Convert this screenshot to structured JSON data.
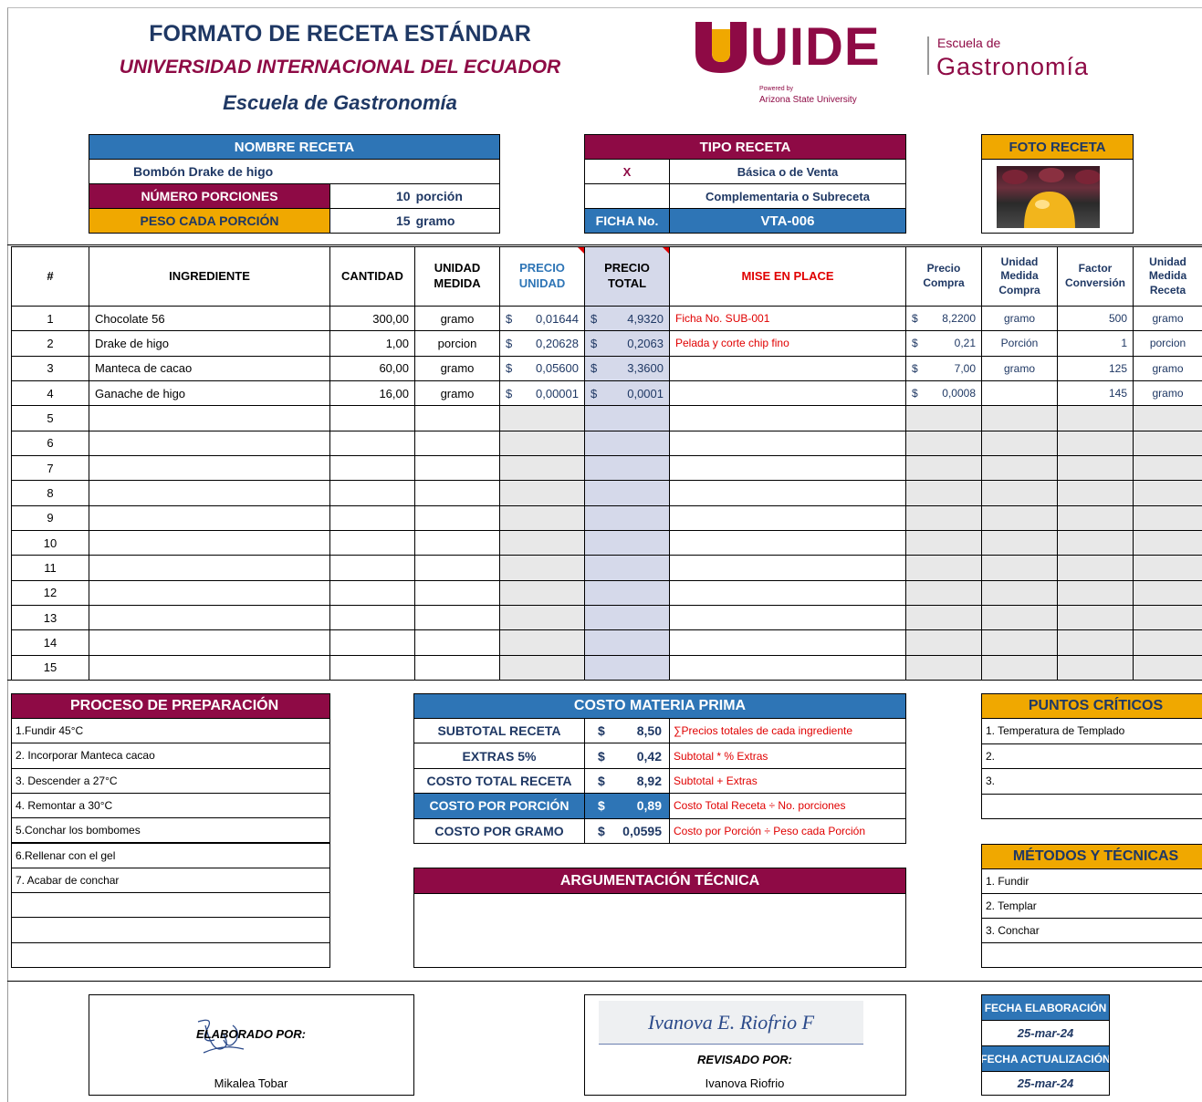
{
  "header": {
    "title": "FORMATO DE RECETA ESTÁNDAR",
    "university": "UNIVERSIDAD INTERNACIONAL DEL ECUADOR",
    "school": "Escuela de Gastronomía"
  },
  "logo": {
    "brand": "UIDE",
    "powered": "Powered by",
    "partner": "Arizona State University",
    "school_line1": "Escuela de",
    "school_line2": "Gastronomía"
  },
  "recipe": {
    "name_label": "NOMBRE RECETA",
    "name": "Bombón Drake de higo",
    "portions_label": "NÚMERO PORCIONES",
    "portions": "10",
    "portions_unit": "porción",
    "weight_label": "PESO CADA PORCIÓN",
    "weight": "15",
    "weight_unit": "gramo"
  },
  "recipe_type": {
    "label": "TIPO RECETA",
    "mark": "X",
    "option1": "Básica o de Venta",
    "option2": "Complementaria o Subreceta",
    "sheet_label": "FICHA No.",
    "sheet": "VTA-006"
  },
  "photo": {
    "label": "FOTO RECETA"
  },
  "ingredients": {
    "currency": "$",
    "columns": [
      "#",
      "INGREDIENTE",
      "CANTIDAD",
      "UNIDAD MEDIDA",
      "PRECIO UNIDAD",
      "PRECIO TOTAL",
      "MISE EN PLACE",
      "Precio Compra",
      "Unidad Medida Compra",
      "Factor Conversión",
      "Unidad Medida Receta"
    ],
    "rows": [
      {
        "n": "1",
        "ingredient": "Chocolate 56",
        "qty": "300,00",
        "unit": "gramo",
        "price_unit": "0,01644",
        "price_total": "4,9320",
        "mise": "Ficha No. SUB-001",
        "purchase_price": "8,2200",
        "purchase_unit": "gramo",
        "factor": "500",
        "recipe_unit": "gramo"
      },
      {
        "n": "2",
        "ingredient": "Drake de higo",
        "qty": "1,00",
        "unit": "porcion",
        "price_unit": "0,20628",
        "price_total": "0,2063",
        "mise": "Pelada y corte chip fino",
        "purchase_price": "0,21",
        "purchase_unit": "Porción",
        "factor": "1",
        "recipe_unit": "porcion"
      },
      {
        "n": "3",
        "ingredient": "Manteca de cacao",
        "qty": "60,00",
        "unit": "gramo",
        "price_unit": "0,05600",
        "price_total": "3,3600",
        "purchase_price": "7,00",
        "purchase_unit": "gramo",
        "factor": "125",
        "recipe_unit": "gramo"
      },
      {
        "n": "4",
        "ingredient": "Ganache de higo",
        "qty": "16,00",
        "unit": "gramo",
        "price_unit": "0,00001",
        "price_total": "0,0001",
        "purchase_price": "0,0008",
        "factor": "145",
        "recipe_unit": "gramo"
      },
      {
        "n": "5"
      },
      {
        "n": "6"
      },
      {
        "n": "7"
      },
      {
        "n": "8"
      },
      {
        "n": "9"
      },
      {
        "n": "10"
      },
      {
        "n": "11"
      },
      {
        "n": "12"
      },
      {
        "n": "13"
      },
      {
        "n": "14"
      },
      {
        "n": "15"
      }
    ]
  },
  "preparation": {
    "title": "PROCESO DE PREPARACIÓN",
    "steps": [
      "1.Fundir 45°C",
      "2. Incorporar Manteca cacao",
      "3. Descender a 27°C",
      "4. Remontar a 30°C",
      "5.Conchar los bombomes",
      "6.Rellenar con el gel",
      "7. Acabar de conchar"
    ]
  },
  "cost": {
    "title": "COSTO MATERIA PRIMA",
    "currency": "$",
    "rows": [
      {
        "label": "SUBTOTAL RECETA",
        "value": "8,50",
        "formula": "∑Precios totales de cada ingrediente"
      },
      {
        "label": "EXTRAS 5%",
        "value": "0,42",
        "formula": "Subtotal * % Extras"
      },
      {
        "label": "COSTO TOTAL RECETA",
        "value": "8,92",
        "formula": "Subtotal + Extras"
      },
      {
        "label": "COSTO POR PORCIÓN",
        "value": "0,89",
        "formula": "Costo Total Receta ÷ No. porciones"
      },
      {
        "label": "COSTO POR GRAMO",
        "value": "0,0595",
        "formula": "Costo por Porción ÷ Peso cada Porción"
      }
    ]
  },
  "technical_argument": {
    "title": "ARGUMENTACIÓN TÉCNICA"
  },
  "critical_points": {
    "title": "PUNTOS CRÍTICOS",
    "items": [
      "1. Temperatura de Templado",
      "2.",
      "3."
    ]
  },
  "methods": {
    "title": "MÉTODOS Y TÉCNICAS",
    "items": [
      "1. Fundir",
      "2. Templar",
      "3. Conchar"
    ]
  },
  "footer": {
    "prepared": {
      "label": "ELABORADO POR:",
      "name": "Mikalea Tobar"
    },
    "reviewed": {
      "label": "REVISADO POR:",
      "name": "Ivanova Riofrio",
      "signature": "Ivanova E. Riofrio F"
    },
    "dates": {
      "created_label": "FECHA ELABORACIÓN",
      "created": "25-mar-24",
      "updated_label": "FECHA ACTUALIZACIÓN",
      "updated": "25-mar-24"
    }
  }
}
